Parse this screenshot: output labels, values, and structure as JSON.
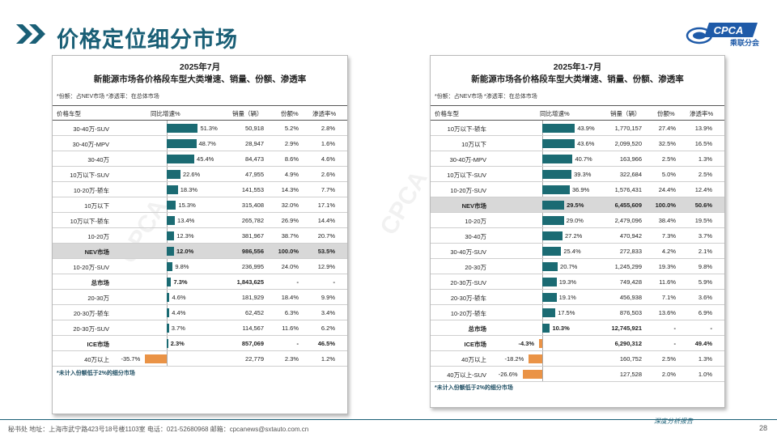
{
  "header": {
    "title": "价格定位细分市场",
    "logo_text": "CPCA",
    "logo_sub": "乘联分会"
  },
  "colors": {
    "accent": "#1a5f76",
    "bar_positive": "#1b6b73",
    "bar_negative": "#ea9346",
    "highlight_row": "#d8d8d8"
  },
  "columns": {
    "segment": "价格车型",
    "growth": "同比增速%",
    "sales": "销量（辆）",
    "share": "份额%",
    "penetration": "渗透率%"
  },
  "left_panel": {
    "year": "2025年7月",
    "subtitle": "新能源市场各价格段车型大类增速、销量、份额、渗透率",
    "note": "*份额：占NEV市场   *渗透率：在总体市场",
    "footnote": "*未计入份额低于2%的细分市场",
    "rows": [
      {
        "segment": "30-40万-SUV",
        "growth": "51.3%",
        "g": 51.3,
        "sales": "50,918",
        "share": "5.2%",
        "penetration": "2.8%"
      },
      {
        "segment": "30-40万-MPV",
        "growth": "48.7%",
        "g": 48.7,
        "sales": "28,947",
        "share": "2.9%",
        "penetration": "1.6%"
      },
      {
        "segment": "30-40万",
        "growth": "45.4%",
        "g": 45.4,
        "sales": "84,473",
        "share": "8.6%",
        "penetration": "4.6%"
      },
      {
        "segment": "10万以下-SUV",
        "growth": "22.6%",
        "g": 22.6,
        "sales": "47,955",
        "share": "4.9%",
        "penetration": "2.6%"
      },
      {
        "segment": "10-20万-轿车",
        "growth": "18.3%",
        "g": 18.3,
        "sales": "141,553",
        "share": "14.3%",
        "penetration": "7.7%"
      },
      {
        "segment": "10万以下",
        "growth": "15.3%",
        "g": 15.3,
        "sales": "315,408",
        "share": "32.0%",
        "penetration": "17.1%"
      },
      {
        "segment": "10万以下-轿车",
        "growth": "13.4%",
        "g": 13.4,
        "sales": "265,782",
        "share": "26.9%",
        "penetration": "14.4%"
      },
      {
        "segment": "10-20万",
        "growth": "12.3%",
        "g": 12.3,
        "sales": "381,967",
        "share": "38.7%",
        "penetration": "20.7%"
      },
      {
        "segment": "NEV市场",
        "growth": "12.0%",
        "g": 12.0,
        "sales": "986,556",
        "share": "100.0%",
        "penetration": "53.5%",
        "style": "hl"
      },
      {
        "segment": "10-20万-SUV",
        "growth": "9.8%",
        "g": 9.8,
        "sales": "236,995",
        "share": "24.0%",
        "penetration": "12.9%"
      },
      {
        "segment": "总市场",
        "growth": "7.3%",
        "g": 7.3,
        "sales": "1,843,625",
        "share": "-",
        "penetration": "-",
        "style": "bold"
      },
      {
        "segment": "20-30万",
        "growth": "4.6%",
        "g": 4.6,
        "sales": "181,929",
        "share": "18.4%",
        "penetration": "9.9%"
      },
      {
        "segment": "20-30万-轿车",
        "growth": "4.4%",
        "g": 4.4,
        "sales": "62,452",
        "share": "6.3%",
        "penetration": "3.4%"
      },
      {
        "segment": "20-30万-SUV",
        "growth": "3.7%",
        "g": 3.7,
        "sales": "114,567",
        "share": "11.6%",
        "penetration": "6.2%"
      },
      {
        "segment": "ICE市场",
        "growth": "2.3%",
        "g": 2.3,
        "sales": "857,069",
        "share": "-",
        "penetration": "46.5%",
        "style": "bold"
      },
      {
        "segment": "40万以上",
        "growth": "-35.7%",
        "g": -35.7,
        "sales": "22,779",
        "share": "2.3%",
        "penetration": "1.2%"
      }
    ]
  },
  "right_panel": {
    "year": "2025年1-7月",
    "subtitle": "新能源市场各价格段车型大类增速、销量、份额、渗透率",
    "note": "*份额：占NEV市场   *渗透率：在总体市场",
    "footnote": "*未计入份额低于2%的细分市场",
    "rows": [
      {
        "segment": "10万以下-轿车",
        "growth": "43.9%",
        "g": 43.9,
        "sales": "1,770,157",
        "share": "27.4%",
        "penetration": "13.9%"
      },
      {
        "segment": "10万以下",
        "growth": "43.6%",
        "g": 43.6,
        "sales": "2,099,520",
        "share": "32.5%",
        "penetration": "16.5%"
      },
      {
        "segment": "30-40万-MPV",
        "growth": "40.7%",
        "g": 40.7,
        "sales": "163,966",
        "share": "2.5%",
        "penetration": "1.3%"
      },
      {
        "segment": "10万以下-SUV",
        "growth": "39.3%",
        "g": 39.3,
        "sales": "322,684",
        "share": "5.0%",
        "penetration": "2.5%"
      },
      {
        "segment": "10-20万-SUV",
        "growth": "36.9%",
        "g": 36.9,
        "sales": "1,576,431",
        "share": "24.4%",
        "penetration": "12.4%"
      },
      {
        "segment": "NEV市场",
        "growth": "29.5%",
        "g": 29.5,
        "sales": "6,455,609",
        "share": "100.0%",
        "penetration": "50.6%",
        "style": "hl"
      },
      {
        "segment": "10-20万",
        "growth": "29.0%",
        "g": 29.0,
        "sales": "2,479,096",
        "share": "38.4%",
        "penetration": "19.5%"
      },
      {
        "segment": "30-40万",
        "growth": "27.2%",
        "g": 27.2,
        "sales": "470,942",
        "share": "7.3%",
        "penetration": "3.7%"
      },
      {
        "segment": "30-40万-SUV",
        "growth": "25.4%",
        "g": 25.4,
        "sales": "272,833",
        "share": "4.2%",
        "penetration": "2.1%"
      },
      {
        "segment": "20-30万",
        "growth": "20.7%",
        "g": 20.7,
        "sales": "1,245,299",
        "share": "19.3%",
        "penetration": "9.8%"
      },
      {
        "segment": "20-30万-SUV",
        "growth": "19.3%",
        "g": 19.3,
        "sales": "749,428",
        "share": "11.6%",
        "penetration": "5.9%"
      },
      {
        "segment": "20-30万-轿车",
        "growth": "19.1%",
        "g": 19.1,
        "sales": "456,938",
        "share": "7.1%",
        "penetration": "3.6%"
      },
      {
        "segment": "10-20万-轿车",
        "growth": "17.5%",
        "g": 17.5,
        "sales": "876,503",
        "share": "13.6%",
        "penetration": "6.9%"
      },
      {
        "segment": "总市场",
        "growth": "10.3%",
        "g": 10.3,
        "sales": "12,745,921",
        "share": "-",
        "penetration": "-",
        "style": "bold"
      },
      {
        "segment": "ICE市场",
        "growth": "-4.3%",
        "g": -4.3,
        "sales": "6,290,312",
        "share": "-",
        "penetration": "49.4%",
        "style": "bold"
      },
      {
        "segment": "40万以上",
        "growth": "-18.2%",
        "g": -18.2,
        "sales": "160,752",
        "share": "2.5%",
        "penetration": "1.3%"
      },
      {
        "segment": "40万以上-SUV",
        "growth": "-26.6%",
        "g": -26.6,
        "sales": "127,528",
        "share": "2.0%",
        "penetration": "1.0%"
      }
    ]
  },
  "footer": {
    "address": "秘书处  地址：上海市武宁路423号18号楼1103室  电话：021-52680968   邮箱：cpcanews@sxtauto.com.cn",
    "brand": "深度分析报告",
    "page": "28"
  }
}
